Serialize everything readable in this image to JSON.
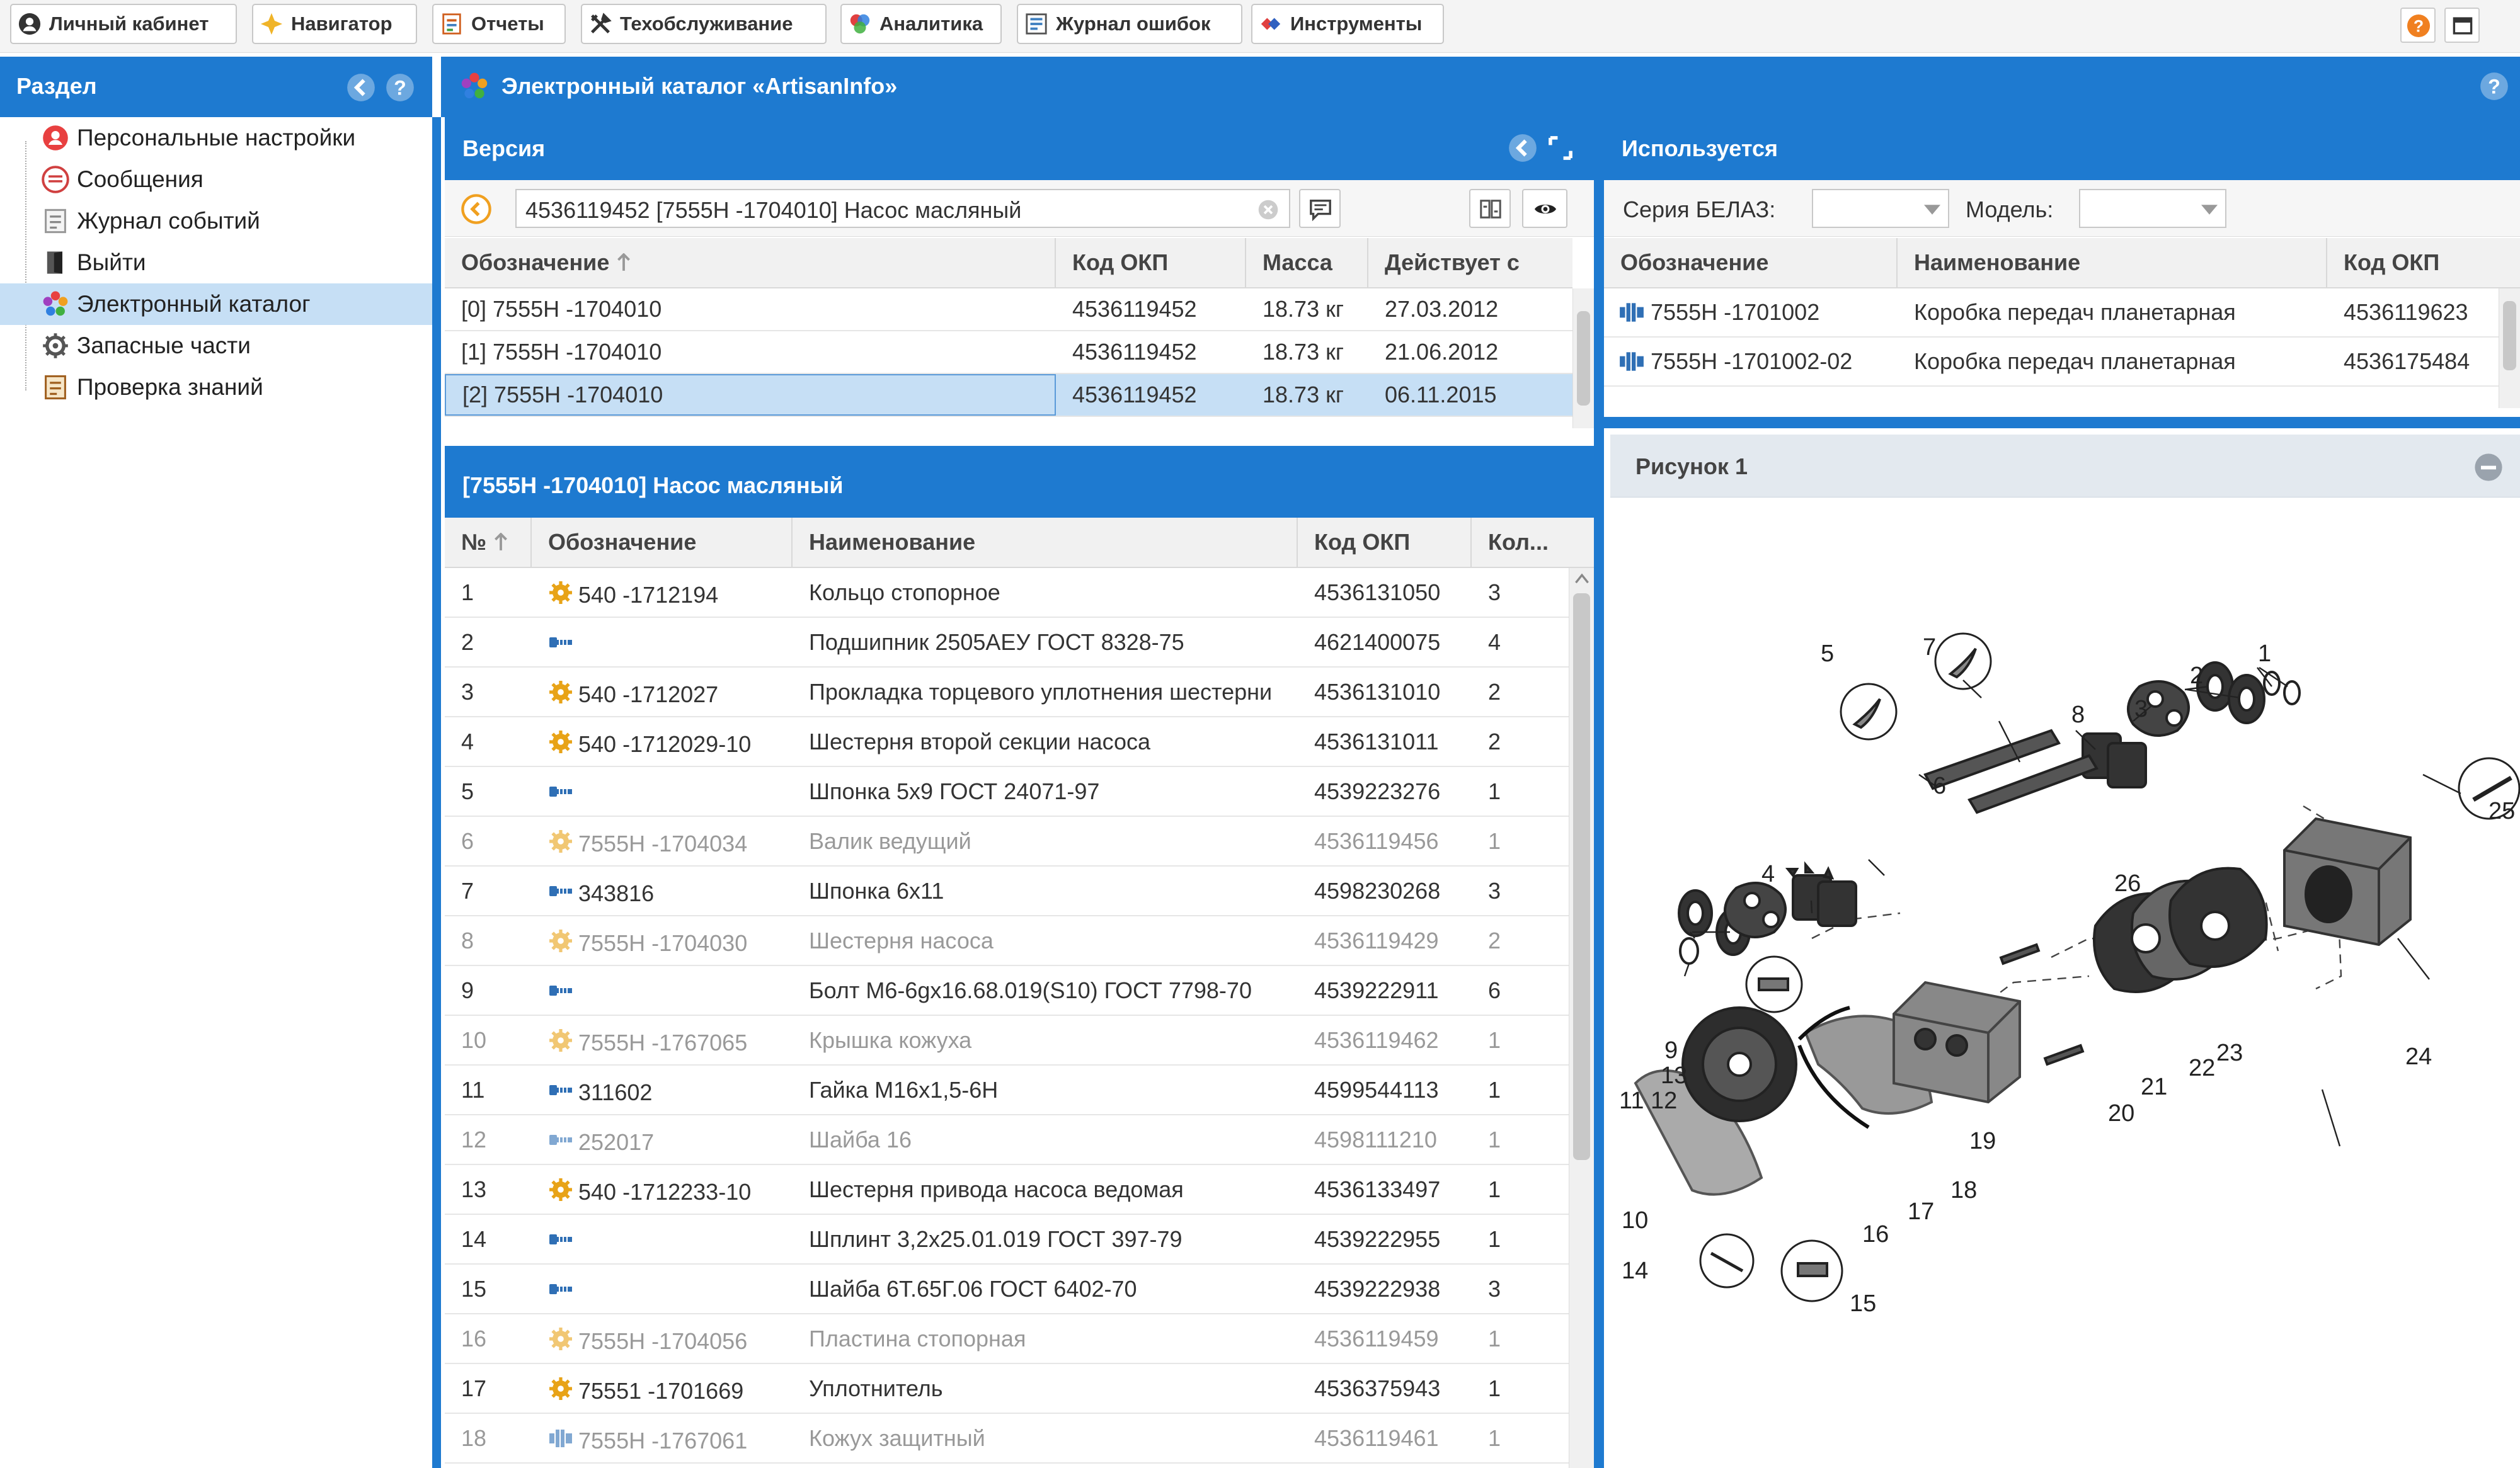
{
  "topbar": {
    "buttons": [
      {
        "label": "Личный кабинет",
        "icon": "user-icon"
      },
      {
        "label": "Навигатор",
        "icon": "star-icon"
      },
      {
        "label": "Отчеты",
        "icon": "report-icon"
      },
      {
        "label": "Техобслуживание",
        "icon": "tools-icon"
      },
      {
        "label": "Аналитика",
        "icon": "analytics-icon"
      },
      {
        "label": "Журнал ошибок",
        "icon": "error-log-icon"
      },
      {
        "label": "Инструменты",
        "icon": "instruments-icon"
      }
    ]
  },
  "sidebar": {
    "title": "Раздел",
    "items": [
      {
        "label": "Персональные настройки",
        "icon": "user-settings-icon"
      },
      {
        "label": "Сообщения",
        "icon": "messages-icon"
      },
      {
        "label": "Журнал событий",
        "icon": "event-log-icon"
      },
      {
        "label": "Выйти",
        "icon": "exit-icon"
      },
      {
        "label": "Электронный каталог",
        "icon": "catalog-icon",
        "active": true
      },
      {
        "label": "Запасные части",
        "icon": "spare-parts-icon"
      },
      {
        "label": "Проверка знаний",
        "icon": "knowledge-check-icon"
      }
    ]
  },
  "main": {
    "title": "Электронный каталог «ArtisanInfo»"
  },
  "version": {
    "title": "Версия",
    "search_value": "4536119452 [7555H  -1704010] Насос масляный",
    "columns": [
      "Обозначение",
      "Код ОКП",
      "Масса",
      "Действует с"
    ],
    "rows": [
      [
        "[0] 7555H -1704010",
        "4536119452",
        "18.73 кг",
        "27.03.2012"
      ],
      [
        "[1] 7555H -1704010",
        "4536119452",
        "18.73 кг",
        "21.06.2012"
      ],
      [
        "[2] 7555H -1704010",
        "4536119452",
        "18.73 кг",
        "06.11.2015"
      ]
    ]
  },
  "parts": {
    "title": "[7555H -1704010] Насос масляный",
    "columns": [
      "№",
      "Обозначение",
      "Наименование",
      "Код ОКП",
      "Кол..."
    ],
    "rows": [
      {
        "n": "1",
        "code": "540 -1712194",
        "name": "Кольцо стопорное",
        "okp": "4536131050",
        "qty": "3",
        "icon": "gear",
        "muted": false
      },
      {
        "n": "2",
        "code": "",
        "name": "Подшипник 2505АЕУ ГОСТ 8328-75",
        "okp": "4621400075",
        "qty": "4",
        "icon": "bolt",
        "muted": false
      },
      {
        "n": "3",
        "code": "540 -1712027",
        "name": "Прокладка торцевого уплотнения шестерни",
        "okp": "4536131010",
        "qty": "2",
        "icon": "gear",
        "muted": false
      },
      {
        "n": "4",
        "code": "540 -1712029-10",
        "name": "Шестерня второй секции насоса",
        "okp": "4536131011",
        "qty": "2",
        "icon": "gear",
        "muted": false
      },
      {
        "n": "5",
        "code": "",
        "name": "Шпонка 5х9 ГОСТ 24071-97",
        "okp": "4539223276",
        "qty": "1",
        "icon": "bolt",
        "muted": false
      },
      {
        "n": "6",
        "code": "7555H -1704034",
        "name": "Валик ведущий",
        "okp": "4536119456",
        "qty": "1",
        "icon": "gear",
        "muted": true
      },
      {
        "n": "7",
        "code": "343816",
        "name": "Шпонка 6х11",
        "okp": "4598230268",
        "qty": "3",
        "icon": "bolt",
        "muted": false
      },
      {
        "n": "8",
        "code": "7555H -1704030",
        "name": "Шестерня насоса",
        "okp": "4536119429",
        "qty": "2",
        "icon": "gear",
        "muted": true
      },
      {
        "n": "9",
        "code": "",
        "name": "Болт М6-6gх16.68.019(S10) ГОСТ 7798-70",
        "okp": "4539222911",
        "qty": "6",
        "icon": "bolt",
        "muted": false
      },
      {
        "n": "10",
        "code": "7555H -1767065",
        "name": "Крышка кожуха",
        "okp": "4536119462",
        "qty": "1",
        "icon": "gear",
        "muted": true
      },
      {
        "n": "11",
        "code": "311602",
        "name": "Гайка М16х1,5-6Н",
        "okp": "4599544113",
        "qty": "1",
        "icon": "bolt",
        "muted": false
      },
      {
        "n": "12",
        "code": "252017",
        "name": "Шайба 16",
        "okp": "4598111210",
        "qty": "1",
        "icon": "bolt",
        "muted": true
      },
      {
        "n": "13",
        "code": "540 -1712233-10",
        "name": "Шестерня привода насоса ведомая",
        "okp": "4536133497",
        "qty": "1",
        "icon": "gear",
        "muted": false
      },
      {
        "n": "14",
        "code": "",
        "name": "Шплинт 3,2х25.01.019 ГОСТ 397-79",
        "okp": "4539222955",
        "qty": "1",
        "icon": "bolt",
        "muted": false
      },
      {
        "n": "15",
        "code": "",
        "name": "Шайба 6Т.65Г.06 ГОСТ 6402-70",
        "okp": "4539222938",
        "qty": "3",
        "icon": "bolt",
        "muted": false
      },
      {
        "n": "16",
        "code": "7555H -1704056",
        "name": "Пластина стопорная",
        "okp": "4536119459",
        "qty": "1",
        "icon": "gear",
        "muted": true
      },
      {
        "n": "17",
        "code": "75551 -1701669",
        "name": "Уплотнитель",
        "okp": "4536375943",
        "qty": "1",
        "icon": "gear",
        "muted": false
      },
      {
        "n": "18",
        "code": "7555H -1767061",
        "name": "Кожух защитный",
        "okp": "4536119461",
        "qty": "1",
        "icon": "assembly",
        "muted": true
      }
    ]
  },
  "used": {
    "title": "Используется",
    "series_label": "Серия БЕЛАЗ:",
    "model_label": "Модель:",
    "columns": [
      "Обозначение",
      "Наименование",
      "Код ОКП"
    ],
    "rows": [
      [
        "7555H -1701002",
        "Коробка передач планетарная",
        "4536119623"
      ],
      [
        "7555H -1701002-02",
        "Коробка передач планетарная",
        "4536175484"
      ]
    ]
  },
  "figure": {
    "title": "Рисунок 1",
    "labels": [
      "1",
      "2",
      "3",
      "4",
      "5",
      "6",
      "7",
      "8",
      "9",
      "10",
      "11",
      "12",
      "13",
      "14",
      "15",
      "16",
      "17",
      "18",
      "19",
      "20",
      "21",
      "22",
      "23",
      "24",
      "25",
      "26"
    ]
  },
  "colors": {
    "accent": "#1e7ad0",
    "selected_row": "#c6dff5",
    "part_gear": "#e8a317",
    "part_bolt": "#2f6fb5"
  }
}
